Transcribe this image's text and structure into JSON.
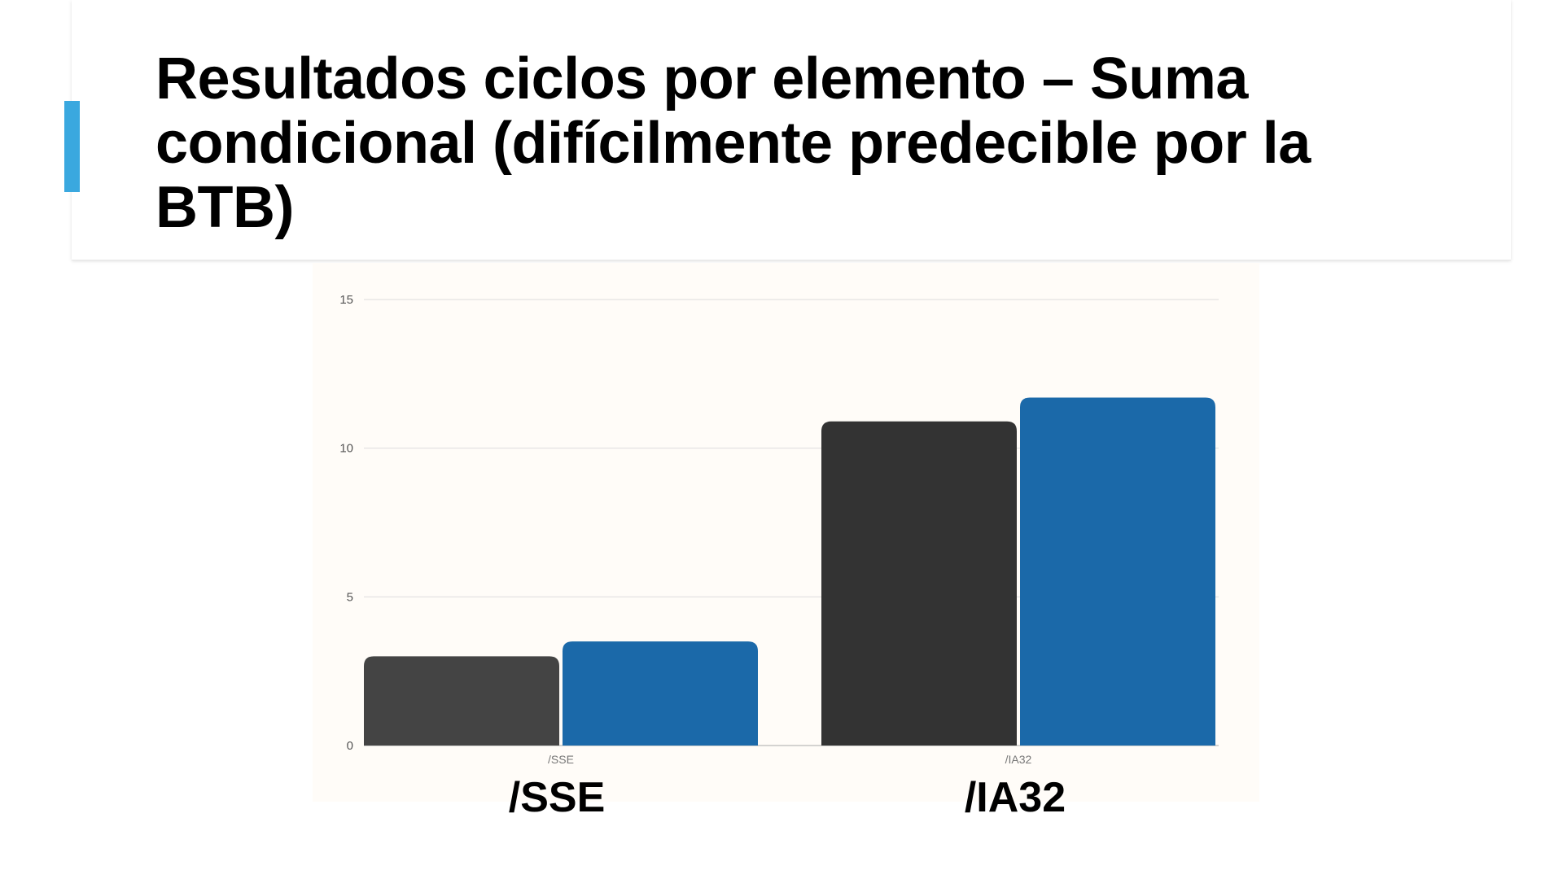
{
  "slide": {
    "title": "Resultados ciclos por elemento – Suma condicional (difícilmente predecible por la BTB)",
    "accent_color": "#3aa8df"
  },
  "chart_data": {
    "type": "bar",
    "categories": [
      "/SSE",
      "/IA32"
    ],
    "series": [
      {
        "values": [
          3.0,
          10.9
        ],
        "colors": [
          "#444444",
          "#333333"
        ]
      },
      {
        "values": [
          3.5,
          11.7
        ],
        "colors": [
          "#1b69a9",
          "#1b69a9"
        ]
      }
    ],
    "ylim": [
      0,
      15
    ],
    "yticks": [
      0,
      5,
      10,
      15
    ],
    "grid": true,
    "xlabel": "",
    "ylabel": "",
    "big_category_labels": [
      "/SSE",
      "/IA32"
    ]
  }
}
